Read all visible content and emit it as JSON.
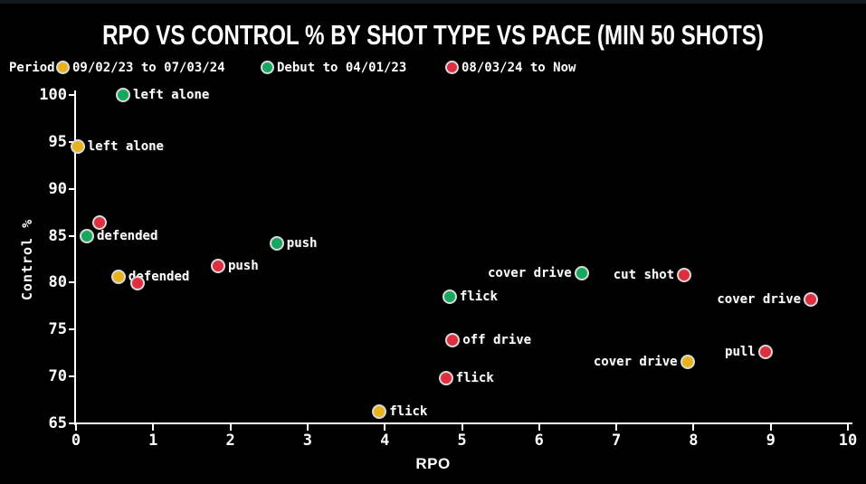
{
  "title": "RPO VS CONTROL % BY SHOT TYPE VS PACE (MIN 50 SHOTS)",
  "legend": {
    "label": "Period",
    "position": "top-left",
    "items": [
      {
        "name": "09/02/23 to 07/03/24",
        "color": "#e8b41e"
      },
      {
        "name": "Debut to 04/01/23",
        "color": "#17a860"
      },
      {
        "name": "08/03/24 to Now",
        "color": "#de2f40"
      }
    ]
  },
  "colors": {
    "background": "#000000",
    "axis": "#ffffff",
    "text": "#ffffff",
    "marker_edge": "#d9d9d9",
    "period_1": "#e8b41e",
    "period_2": "#17a860",
    "period_3": "#de2f40"
  },
  "chart_data": {
    "type": "scatter",
    "title": "RPO VS CONTROL % BY SHOT TYPE VS PACE (MIN 50 SHOTS)",
    "xlabel": "RPO",
    "ylabel": "Control %",
    "xlim": [
      0,
      10
    ],
    "ylim": [
      65,
      100
    ],
    "xticks": [
      0,
      1,
      2,
      3,
      4,
      5,
      6,
      7,
      8,
      9,
      10
    ],
    "yticks": [
      65,
      70,
      75,
      80,
      85,
      90,
      95,
      100
    ],
    "grid": false,
    "legend_position": "top-left",
    "series": [
      {
        "name": "09/02/23 to 07/03/24",
        "color": "#e8b41e",
        "points": [
          {
            "label": "left alone",
            "x": 0.02,
            "y": 94.5,
            "label_side": "right"
          },
          {
            "label": "defended",
            "x": 0.55,
            "y": 80.6,
            "label_side": "right"
          },
          {
            "label": "flick",
            "x": 3.93,
            "y": 66.3,
            "label_side": "right"
          },
          {
            "label": "cover drive",
            "x": 7.92,
            "y": 71.6,
            "label_side": "left"
          }
        ]
      },
      {
        "name": "Debut to 04/01/23",
        "color": "#17a860",
        "points": [
          {
            "label": "left alone",
            "x": 0.61,
            "y": 100.0,
            "label_side": "right"
          },
          {
            "label": "defended",
            "x": 0.14,
            "y": 85.0,
            "label_side": "right"
          },
          {
            "label": "push",
            "x": 2.6,
            "y": 84.2,
            "label_side": "right"
          },
          {
            "label": "flick",
            "x": 4.84,
            "y": 78.5,
            "label_side": "right"
          },
          {
            "label": "cover drive",
            "x": 6.55,
            "y": 81.0,
            "label_side": "left"
          }
        ]
      },
      {
        "name": "08/03/24 to Now",
        "color": "#de2f40",
        "points": [
          {
            "label": "",
            "x": 0.3,
            "y": 86.4,
            "label_side": "right"
          },
          {
            "label": "",
            "x": 0.8,
            "y": 79.9,
            "label_side": "right"
          },
          {
            "label": "push",
            "x": 1.84,
            "y": 81.8,
            "label_side": "right"
          },
          {
            "label": "cut shot",
            "x": 7.88,
            "y": 80.8,
            "label_side": "left"
          },
          {
            "label": "cover drive",
            "x": 9.52,
            "y": 78.2,
            "label_side": "left"
          },
          {
            "label": "off drive",
            "x": 4.88,
            "y": 73.9,
            "label_side": "right"
          },
          {
            "label": "pull",
            "x": 8.93,
            "y": 72.6,
            "label_side": "left"
          },
          {
            "label": "flick",
            "x": 4.79,
            "y": 69.8,
            "label_side": "right"
          }
        ]
      }
    ]
  }
}
